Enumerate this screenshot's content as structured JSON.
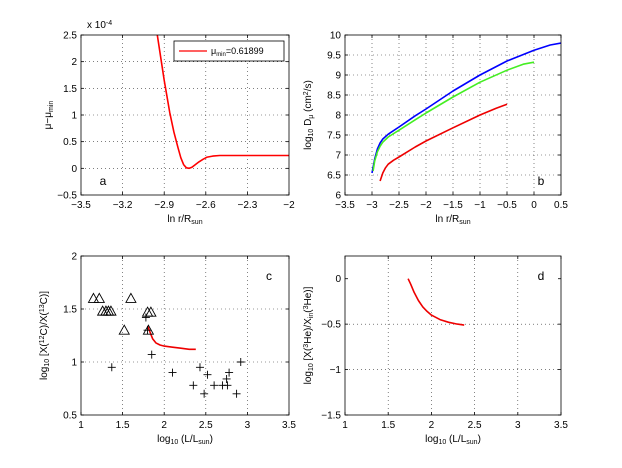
{
  "figure": {
    "panels": [
      "a",
      "b",
      "c",
      "d"
    ]
  },
  "chart_data": [
    {
      "id": "a",
      "type": "line",
      "panel_label": "a",
      "xlabel_main": "ln r/R",
      "xlabel_sub": "sun",
      "ylabel_main": "μ−μ",
      "ylabel_sub": "min",
      "y_scale_note": "x 10",
      "y_scale_exp": "-4",
      "xlim": [
        -3.5,
        -2
      ],
      "ylim": [
        -0.5,
        2.5
      ],
      "xticks": [
        -3.5,
        -3.2,
        -2.9,
        -2.6,
        -2.3,
        -2
      ],
      "xtick_labels": [
        "−3.5",
        "−3.2",
        "−2.9",
        "−2.6",
        "−2.3",
        "−2"
      ],
      "yticks": [
        -0.5,
        0,
        0.5,
        1,
        1.5,
        2,
        2.5
      ],
      "ytick_labels": [
        "−0.5",
        "0",
        "0.5",
        "1",
        "1.5",
        "2",
        "2.5"
      ],
      "legend": {
        "label_main": "μ",
        "label_sub": "min",
        "label_value": "=0.61899",
        "color": "#ff0000",
        "position": "top-right"
      },
      "series": [
        {
          "name": "μ−μmin",
          "color": "#ff0000",
          "x": [
            -2.95,
            -2.9,
            -2.86,
            -2.83,
            -2.8,
            -2.78,
            -2.76,
            -2.74,
            -2.72,
            -2.7,
            -2.68,
            -2.65,
            -2.62,
            -2.59,
            -2.55,
            -2.5,
            -2.45,
            -2.4,
            -2.3,
            -2.2,
            -2.0
          ],
          "y": [
            2.5,
            1.65,
            1.05,
            0.68,
            0.38,
            0.2,
            0.07,
            0.01,
            0.0,
            0.02,
            0.06,
            0.12,
            0.17,
            0.21,
            0.23,
            0.24,
            0.24,
            0.24,
            0.24,
            0.24,
            0.24
          ]
        }
      ]
    },
    {
      "id": "b",
      "type": "line",
      "panel_label": "b",
      "xlabel_main": "ln r/R",
      "xlabel_sub": "sun",
      "ylabel_pre": "log",
      "ylabel_pre_sub": "10",
      "ylabel_main": " D",
      "ylabel_main_sub": "μ",
      "ylabel_unit_pre": " (cm",
      "ylabel_unit_sup": "2",
      "ylabel_unit_post": "/s)",
      "xlim": [
        -3.5,
        0.5
      ],
      "ylim": [
        6,
        10
      ],
      "xticks": [
        -3.5,
        -3,
        -2.5,
        -2,
        -1.5,
        -1,
        -0.5,
        0,
        0.5
      ],
      "xtick_labels": [
        "−3.5",
        "−3",
        "−2.5",
        "−2",
        "−1.5",
        "−1",
        "−0.5",
        "0",
        "0.5"
      ],
      "yticks": [
        6,
        6.5,
        7,
        7.5,
        8,
        8.5,
        9,
        9.5,
        10
      ],
      "ytick_labels": [
        "6",
        "6.5",
        "7",
        "7.5",
        "8",
        "8.5",
        "9",
        "9.5",
        "10"
      ],
      "series": [
        {
          "name": "blue",
          "color": "#0000ff",
          "x": [
            -3.0,
            -2.95,
            -2.9,
            -2.85,
            -2.8,
            -2.7,
            -2.5,
            -2.2,
            -2.0,
            -1.5,
            -1.0,
            -0.5,
            0.0,
            0.3,
            0.5
          ],
          "y": [
            6.55,
            6.9,
            7.15,
            7.3,
            7.4,
            7.52,
            7.7,
            7.98,
            8.15,
            8.6,
            9.0,
            9.35,
            9.62,
            9.75,
            9.8
          ]
        },
        {
          "name": "green",
          "color": "#44ee22",
          "x": [
            -2.98,
            -2.95,
            -2.9,
            -2.85,
            -2.8,
            -2.7,
            -2.5,
            -2.2,
            -2.0,
            -1.5,
            -1.0,
            -0.5,
            -0.2,
            0.0
          ],
          "y": [
            6.6,
            6.85,
            7.08,
            7.22,
            7.32,
            7.45,
            7.62,
            7.88,
            8.05,
            8.45,
            8.82,
            9.12,
            9.27,
            9.32
          ]
        },
        {
          "name": "red",
          "color": "#ee0000",
          "x": [
            -2.85,
            -2.8,
            -2.75,
            -2.7,
            -2.6,
            -2.5,
            -2.2,
            -2.0,
            -1.5,
            -1.0,
            -0.7,
            -0.5
          ],
          "y": [
            6.35,
            6.55,
            6.68,
            6.77,
            6.87,
            6.95,
            7.2,
            7.35,
            7.68,
            8.0,
            8.17,
            8.27
          ]
        }
      ]
    },
    {
      "id": "c",
      "type": "scatter",
      "panel_label": "c",
      "xlabel_pre": "log",
      "xlabel_pre_sub": "10",
      "xlabel_main": " (L/L",
      "xlabel_main_sub": "sun",
      "xlabel_post": ")",
      "ylabel_pre": "log",
      "ylabel_pre_sub": "10",
      "ylabel_a": " [X(",
      "ylabel_a_sup": "12",
      "ylabel_b": "C)/X(",
      "ylabel_b_sup": "13",
      "ylabel_c": "C)]",
      "xlim": [
        1,
        3.5
      ],
      "ylim": [
        0.5,
        2
      ],
      "xticks": [
        1,
        1.5,
        2,
        2.5,
        3,
        3.5
      ],
      "xtick_labels": [
        "1",
        "1.5",
        "2",
        "2.5",
        "3",
        "3.5"
      ],
      "yticks": [
        0.5,
        1,
        1.5,
        2
      ],
      "ytick_labels": [
        "0.5",
        "1",
        "1.5",
        "2"
      ],
      "series": [
        {
          "name": "model",
          "kind": "line",
          "color": "#ee0000",
          "x": [
            1.8,
            1.83,
            1.86,
            1.9,
            1.95,
            2.0,
            2.1,
            2.2,
            2.3,
            2.38
          ],
          "y": [
            1.34,
            1.28,
            1.22,
            1.18,
            1.16,
            1.15,
            1.14,
            1.13,
            1.12,
            1.12
          ]
        },
        {
          "name": "triangles",
          "kind": "triangle",
          "color": "#000000",
          "x": [
            1.15,
            1.22,
            1.26,
            1.3,
            1.33,
            1.36,
            1.52,
            1.6,
            1.8,
            1.81,
            1.84
          ],
          "y": [
            1.6,
            1.6,
            1.48,
            1.48,
            1.48,
            1.48,
            1.3,
            1.6,
            1.47,
            1.3,
            1.47
          ]
        },
        {
          "name": "crosses",
          "kind": "plus",
          "color": "#000000",
          "x": [
            1.37,
            1.78,
            1.8,
            1.85,
            2.1,
            2.35,
            2.43,
            2.48,
            2.52,
            2.6,
            2.7,
            2.75,
            2.76,
            2.78,
            2.87,
            2.92
          ],
          "y": [
            0.95,
            1.42,
            1.3,
            1.07,
            0.9,
            0.78,
            0.95,
            0.7,
            0.88,
            0.78,
            0.78,
            0.84,
            0.78,
            0.9,
            0.7,
            1.0
          ]
        }
      ]
    },
    {
      "id": "d",
      "type": "line",
      "panel_label": "d",
      "xlabel_pre": "log",
      "xlabel_pre_sub": "10",
      "xlabel_main": " (L/L",
      "xlabel_main_sub": "sun",
      "xlabel_post": ")",
      "ylabel_pre": "log",
      "ylabel_pre_sub": "10",
      "ylabel_a": " [X(",
      "ylabel_a_sup": "3",
      "ylabel_b": "He)/X",
      "ylabel_b_sub": "in",
      "ylabel_c": "(",
      "ylabel_c_sup": "3",
      "ylabel_d": "He)]",
      "xlim": [
        1,
        3.5
      ],
      "ylim": [
        -1.5,
        0.25
      ],
      "xticks": [
        1,
        1.5,
        2,
        2.5,
        3,
        3.5
      ],
      "xtick_labels": [
        "1",
        "1.5",
        "2",
        "2.5",
        "3",
        "3.5"
      ],
      "yticks": [
        -1.5,
        -1,
        -0.5,
        0
      ],
      "ytick_labels": [
        "−1.5",
        "−1",
        "−0.5",
        "0"
      ],
      "series": [
        {
          "name": "3He",
          "color": "#ee0000",
          "x": [
            1.73,
            1.76,
            1.8,
            1.85,
            1.9,
            1.95,
            2.0,
            2.1,
            2.2,
            2.3,
            2.38
          ],
          "y": [
            0.0,
            -0.06,
            -0.15,
            -0.24,
            -0.31,
            -0.36,
            -0.4,
            -0.45,
            -0.48,
            -0.5,
            -0.51
          ]
        }
      ]
    }
  ]
}
